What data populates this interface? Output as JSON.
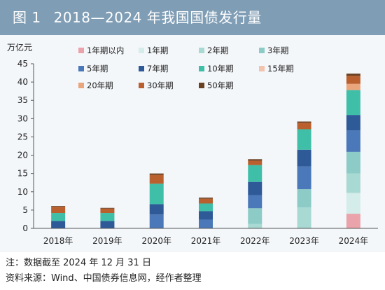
{
  "header": {
    "figure_no": "图 1",
    "title": "2018—2024 年我国国债发行量"
  },
  "footer": {
    "note": "注：数据截至 2024 年 12 月 31 日",
    "source": "资料来源：Wind、中国债券信息网，经作者整理"
  },
  "chart_data": {
    "type": "bar",
    "stacked": true,
    "title": "2018—2024 年我国国债发行量",
    "ylabel": "万亿元",
    "xlabel": "",
    "ylim": [
      0,
      45
    ],
    "yticks": [
      0,
      5,
      10,
      15,
      20,
      25,
      30,
      35,
      40,
      45
    ],
    "grid": false,
    "legend_position": "top",
    "categories": [
      "2018年",
      "2019年",
      "2020年",
      "2021年",
      "2022年",
      "2023年",
      "2024年"
    ],
    "series": [
      {
        "name": "1年期以内",
        "color": "#eaa3aa",
        "values": [
          0,
          0,
          0,
          0,
          0,
          0,
          4.0
        ]
      },
      {
        "name": "1年期",
        "color": "#d4ecea",
        "values": [
          0,
          0,
          0,
          0,
          0,
          0,
          5.7
        ]
      },
      {
        "name": "2年期",
        "color": "#a8d9d2",
        "values": [
          0,
          0,
          0,
          0,
          1.2,
          5.7,
          5.3
        ]
      },
      {
        "name": "3年期",
        "color": "#8ccbc6",
        "values": [
          0,
          0,
          0,
          0,
          4.3,
          5.0,
          5.9
        ]
      },
      {
        "name": "5年期",
        "color": "#4a78b8",
        "values": [
          0,
          0,
          3.8,
          2.4,
          3.6,
          6.2,
          5.9
        ]
      },
      {
        "name": "7年期",
        "color": "#2f5a98",
        "values": [
          2.0,
          2.0,
          2.8,
          2.3,
          3.6,
          4.6,
          4.2
        ]
      },
      {
        "name": "10年期",
        "color": "#3fbfa8",
        "values": [
          2.2,
          2.2,
          5.6,
          2.1,
          4.6,
          5.6,
          6.8
        ]
      },
      {
        "name": "15年期",
        "color": "#f2c3ad",
        "values": [
          0,
          0,
          0,
          0,
          0,
          0,
          0
        ]
      },
      {
        "name": "20年期",
        "color": "#eba57c",
        "values": [
          0,
          0,
          0,
          0,
          0,
          0,
          1.7
        ]
      },
      {
        "name": "30年期",
        "color": "#b9602e",
        "values": [
          1.7,
          1.2,
          2.4,
          1.3,
          1.2,
          1.8,
          2.2
        ]
      },
      {
        "name": "50年期",
        "color": "#6b4021",
        "values": [
          0.2,
          0.2,
          0.4,
          0.3,
          0.4,
          0.3,
          0.6
        ]
      }
    ]
  }
}
